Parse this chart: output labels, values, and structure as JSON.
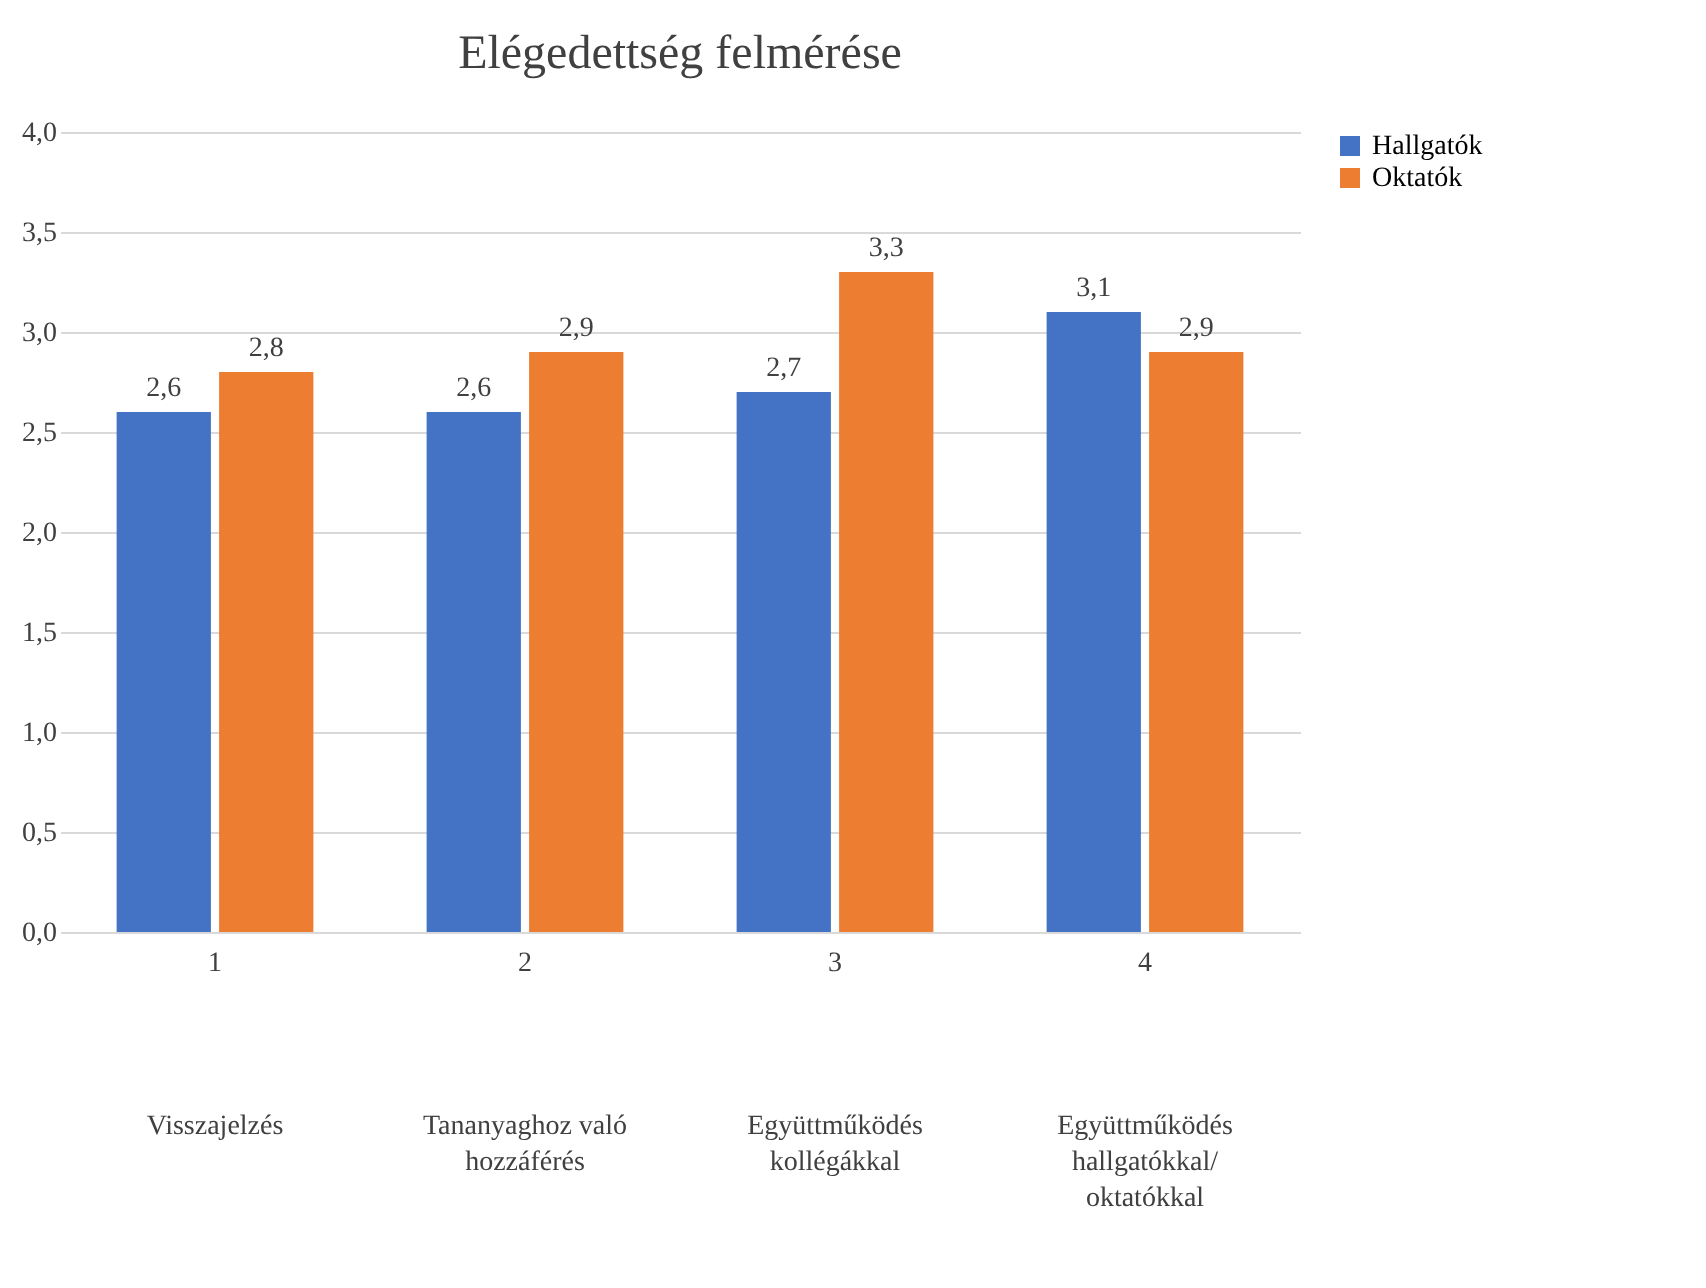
{
  "chart_data": {
    "type": "bar",
    "title": "Elégedettség felmérése",
    "categories": [
      "1",
      "2",
      "3",
      "4"
    ],
    "series": [
      {
        "name": "Hallgatók",
        "color": "#4472c4",
        "values": [
          2.6,
          2.6,
          2.7,
          3.1
        ],
        "value_labels": [
          "2,6",
          "2,6",
          "2,7",
          "3,1"
        ]
      },
      {
        "name": "Oktatók",
        "color": "#ed7d31",
        "values": [
          2.8,
          2.9,
          3.3,
          2.9
        ],
        "value_labels": [
          "2,8",
          "2,9",
          "3,3",
          "2,9"
        ]
      }
    ],
    "ylim": [
      0,
      4
    ],
    "yticks": [
      {
        "value": 0,
        "label": "0,0"
      },
      {
        "value": 0.5,
        "label": "0,5"
      },
      {
        "value": 1,
        "label": "1,0"
      },
      {
        "value": 1.5,
        "label": "1,5"
      },
      {
        "value": 2,
        "label": "2,0"
      },
      {
        "value": 2.5,
        "label": "2,5"
      },
      {
        "value": 3,
        "label": "3,0"
      },
      {
        "value": 3.5,
        "label": "3,5"
      },
      {
        "value": 4,
        "label": "4,0"
      }
    ],
    "grid": "y",
    "legend": "right",
    "annotations": [
      "Visszajelzés",
      "Tananyaghoz való hozzáférés",
      "Együttműködés kollégákkal",
      "Együttműködés hallgatókkal/ oktatókkal"
    ]
  }
}
